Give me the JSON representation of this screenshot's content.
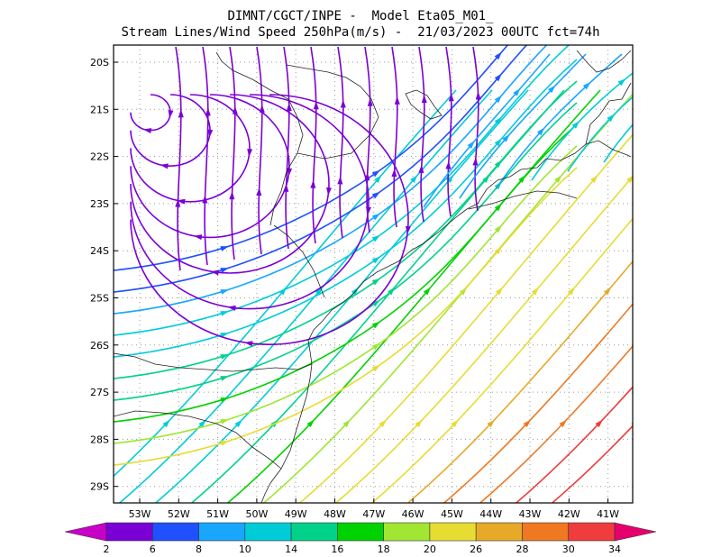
{
  "header": {
    "title_line1": "DIMNT/CGCT/INPE -  Model Eta05_M01_",
    "title_line2": "Stream Lines/Wind Speed 250hPa(m/s) -  21/03/2023 00UTC fct=74h"
  },
  "map": {
    "lat_labels": [
      "20S",
      "21S",
      "22S",
      "23S",
      "24S",
      "25S",
      "26S",
      "27S",
      "28S",
      "29S"
    ],
    "lon_labels": [
      "53W",
      "52W",
      "51W",
      "50W",
      "49W",
      "48W",
      "47W",
      "46W",
      "45W",
      "44W",
      "43W",
      "42W",
      "41W"
    ]
  },
  "colorbar": {
    "labels": [
      "2",
      "6",
      "8",
      "10",
      "14",
      "16",
      "18",
      "20",
      "26",
      "28",
      "30",
      "34"
    ],
    "colors": [
      "#c800c8",
      "#7a00d6",
      "#2050ff",
      "#18a6ff",
      "#00ccd8",
      "#00d28a",
      "#00d200",
      "#a0e632",
      "#e6dc32",
      "#e6aa28",
      "#f07820",
      "#f03c3c",
      "#e6006e"
    ]
  }
}
